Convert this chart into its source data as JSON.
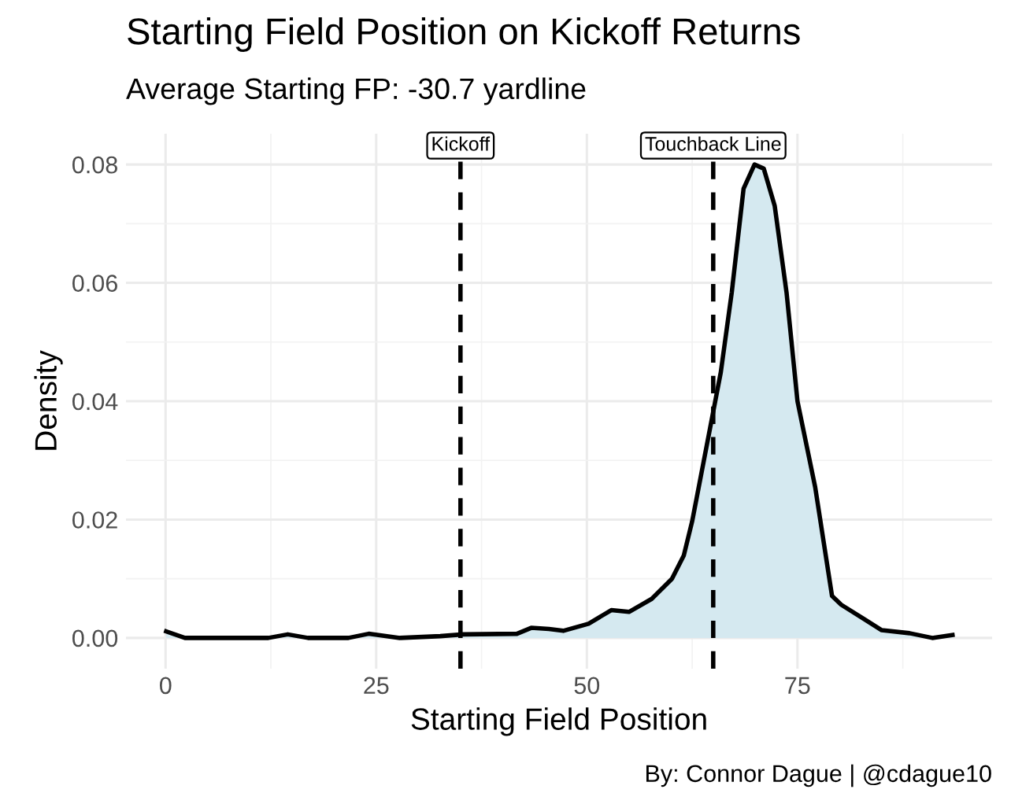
{
  "chart_data": {
    "type": "area",
    "title": "Starting Field Position on Kickoff Returns",
    "subtitle": "Average Starting FP: -30.7 yardline",
    "xlabel": "Starting Field Position",
    "ylabel": "Density",
    "x": [
      0.07,
      2.3,
      12.2,
      14.5,
      16.9,
      21.7,
      24.1,
      27.8,
      32.6,
      35.3,
      41.7,
      43.4,
      45.5,
      47.2,
      50.2,
      52.9,
      55.0,
      57.7,
      60.1,
      61.5,
      62.5,
      64.2,
      65.9,
      67.2,
      68.6,
      69.9,
      71.0,
      72.3,
      73.7,
      75.0,
      77.1,
      79.1,
      80.2,
      82.9,
      85.0,
      88.3,
      91.0,
      93.4
    ],
    "series": [
      {
        "color": "#d5e9f0",
        "values": [
          0.0011,
          0,
          0,
          0.0006,
          0,
          0,
          0.0007,
          0,
          0.0003,
          0.0006,
          0.0007,
          0.0017,
          0.0015,
          0.0012,
          0.0024,
          0.0047,
          0.0044,
          0.0066,
          0.01,
          0.0139,
          0.0197,
          0.0323,
          0.0449,
          0.0584,
          0.0759,
          0.08,
          0.0793,
          0.073,
          0.0584,
          0.04,
          0.0255,
          0.0071,
          0.0056,
          0.0032,
          0.0013,
          0.0008,
          0,
          0.0005
        ]
      }
    ],
    "xlim": [
      -4.7,
      98.1
    ],
    "ylim": [
      -0.0052,
      0.0852
    ],
    "xticks": [
      0,
      25,
      50,
      75
    ],
    "yticks": [
      {
        "value": 0,
        "label": "0.00"
      },
      {
        "value": 0.02,
        "label": "0.02"
      },
      {
        "value": 0.04,
        "label": "0.04"
      },
      {
        "value": 0.06,
        "label": "0.06"
      },
      {
        "value": 0.08,
        "label": "0.08"
      }
    ],
    "ref_lines": [
      {
        "axis": "x",
        "value": 35,
        "label": "Kickoff",
        "color": "#000000",
        "line_style": "dashed"
      },
      {
        "axis": "x",
        "value": 65,
        "label": "Touchback Line",
        "color": "#000000",
        "line_style": "dashed"
      }
    ],
    "annotations": [
      "By: Connor Dague | @cdague10"
    ],
    "grid": true
  }
}
